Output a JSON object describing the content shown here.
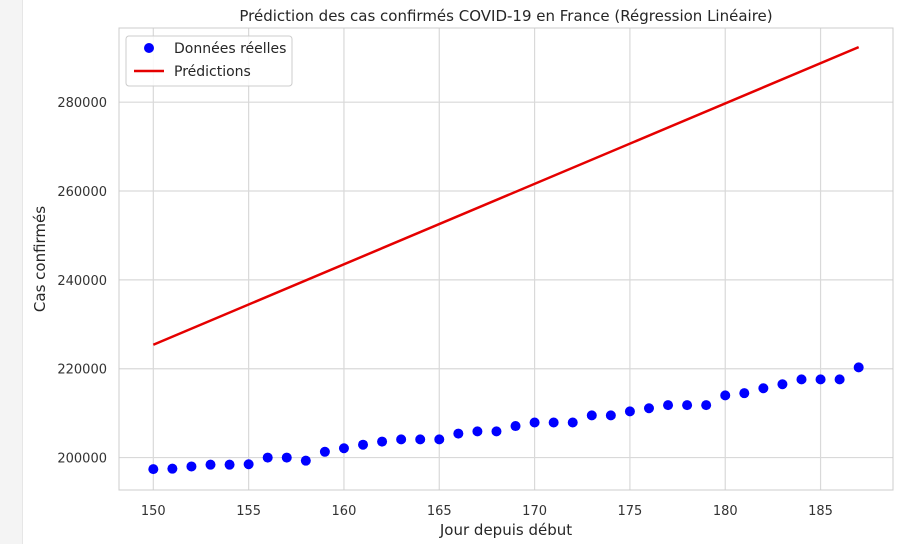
{
  "chart_data": {
    "type": "scatter+line",
    "title": "Prédiction des cas confirmés COVID-19 en France (Régression Linéaire)",
    "xlabel": "Jour depuis début",
    "ylabel": "Cas confirmés",
    "xlim": [
      148.2,
      188.8
    ],
    "ylim": [
      192700,
      296700
    ],
    "x_ticks": [
      150,
      155,
      160,
      165,
      170,
      175,
      180,
      185
    ],
    "y_ticks": [
      200000,
      220000,
      240000,
      260000,
      280000
    ],
    "grid": true,
    "legend_position": "top-left",
    "series": [
      {
        "name": "Données réelles",
        "kind": "scatter",
        "color": "#0000ff",
        "x": [
          150,
          151,
          152,
          153,
          154,
          155,
          156,
          157,
          158,
          159,
          160,
          161,
          162,
          163,
          164,
          165,
          166,
          167,
          168,
          169,
          170,
          171,
          172,
          173,
          174,
          175,
          176,
          177,
          178,
          179,
          180,
          181,
          182,
          183,
          184,
          185,
          186,
          187
        ],
        "y": [
          197400,
          197500,
          198000,
          198400,
          198400,
          198500,
          200000,
          200000,
          199300,
          201300,
          202100,
          202900,
          203600,
          204100,
          204100,
          204100,
          205400,
          205900,
          205900,
          207100,
          207900,
          207900,
          207900,
          209500,
          209500,
          210400,
          211100,
          211800,
          211800,
          211800,
          214000,
          214500,
          215600,
          216500,
          217600,
          217600,
          217600,
          220300
        ]
      },
      {
        "name": "Prédictions",
        "kind": "line",
        "color": "#e50000",
        "x": [
          150,
          187
        ],
        "y": [
          225400,
          292400
        ]
      }
    ]
  }
}
